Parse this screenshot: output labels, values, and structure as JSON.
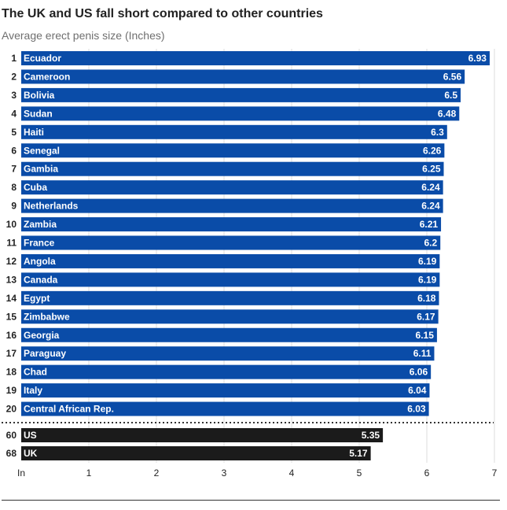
{
  "title": "The UK and US fall short compared to other countries",
  "subtitle": "Average erect penis size (Inches)",
  "colors": {
    "top20": "#0a4ca8",
    "highlight": "#1b1b1b",
    "text_on_bar": "#ffffff",
    "grid": "#dddddd"
  },
  "chart_data": {
    "type": "bar",
    "orientation": "horizontal",
    "xlim": [
      0,
      7
    ],
    "x_ticks": [
      {
        "value": 0,
        "label": "In"
      },
      {
        "value": 1,
        "label": "1"
      },
      {
        "value": 2,
        "label": "2"
      },
      {
        "value": 3,
        "label": "3"
      },
      {
        "value": 4,
        "label": "4"
      },
      {
        "value": 5,
        "label": "5"
      },
      {
        "value": 6,
        "label": "6"
      },
      {
        "value": 7,
        "label": "7"
      }
    ],
    "grid": true,
    "series": [
      {
        "group": "top20",
        "rows": [
          {
            "rank": "1",
            "country": "Ecuador",
            "value": 6.93,
            "label": "6.93"
          },
          {
            "rank": "2",
            "country": "Cameroon",
            "value": 6.56,
            "label": "6.56"
          },
          {
            "rank": "3",
            "country": "Bolivia",
            "value": 6.5,
            "label": "6.5"
          },
          {
            "rank": "4",
            "country": "Sudan",
            "value": 6.48,
            "label": "6.48"
          },
          {
            "rank": "5",
            "country": "Haiti",
            "value": 6.3,
            "label": "6.3"
          },
          {
            "rank": "6",
            "country": "Senegal",
            "value": 6.26,
            "label": "6.26"
          },
          {
            "rank": "7",
            "country": "Gambia",
            "value": 6.25,
            "label": "6.25"
          },
          {
            "rank": "8",
            "country": "Cuba",
            "value": 6.24,
            "label": "6.24"
          },
          {
            "rank": "9",
            "country": "Netherlands",
            "value": 6.24,
            "label": "6.24"
          },
          {
            "rank": "10",
            "country": "Zambia",
            "value": 6.21,
            "label": "6.21"
          },
          {
            "rank": "11",
            "country": "France",
            "value": 6.2,
            "label": "6.2"
          },
          {
            "rank": "12",
            "country": "Angola",
            "value": 6.19,
            "label": "6.19"
          },
          {
            "rank": "13",
            "country": "Canada",
            "value": 6.19,
            "label": "6.19"
          },
          {
            "rank": "14",
            "country": "Egypt",
            "value": 6.18,
            "label": "6.18"
          },
          {
            "rank": "15",
            "country": "Zimbabwe",
            "value": 6.17,
            "label": "6.17"
          },
          {
            "rank": "16",
            "country": "Georgia",
            "value": 6.15,
            "label": "6.15"
          },
          {
            "rank": "17",
            "country": "Paraguay",
            "value": 6.11,
            "label": "6.11"
          },
          {
            "rank": "18",
            "country": "Chad",
            "value": 6.06,
            "label": "6.06"
          },
          {
            "rank": "19",
            "country": "Italy",
            "value": 6.04,
            "label": "6.04"
          },
          {
            "rank": "20",
            "country": "Central African Rep.",
            "value": 6.03,
            "label": "6.03"
          }
        ]
      },
      {
        "group": "highlight",
        "rows": [
          {
            "rank": "60",
            "country": "US",
            "value": 5.35,
            "label": "5.35"
          },
          {
            "rank": "68",
            "country": "UK",
            "value": 5.17,
            "label": "5.17"
          }
        ]
      }
    ]
  }
}
